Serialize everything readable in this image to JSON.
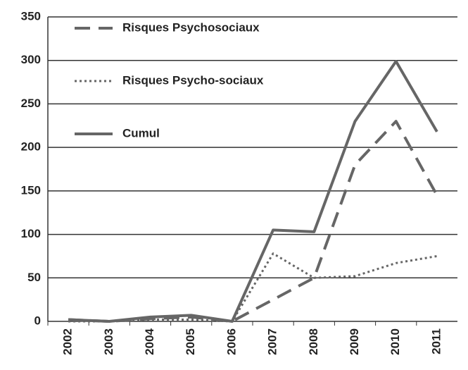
{
  "chart_data": {
    "type": "line",
    "categories": [
      "2002",
      "2003",
      "2004",
      "2005",
      "2006",
      "2007",
      "2008",
      "2009",
      "2010",
      "2011"
    ],
    "series": [
      {
        "name": "Risques Psychosociaux",
        "color": "#666666",
        "style": "dashed",
        "values": [
          2,
          0,
          3,
          5,
          0,
          25,
          50,
          180,
          230,
          145
        ]
      },
      {
        "name": "Risques Psycho-sociaux",
        "color": "#666666",
        "style": "dotted",
        "values": [
          0,
          0,
          2,
          2,
          0,
          78,
          50,
          52,
          67,
          75
        ]
      },
      {
        "name": "Cumul",
        "color": "#666666",
        "style": "solid",
        "values": [
          2,
          0,
          5,
          7,
          0,
          105,
          103,
          230,
          299,
          218
        ]
      }
    ],
    "ylim": [
      0,
      350
    ],
    "yticks": [
      0,
      50,
      100,
      150,
      200,
      250,
      300,
      350
    ],
    "grid": true,
    "legend": "top-left"
  }
}
